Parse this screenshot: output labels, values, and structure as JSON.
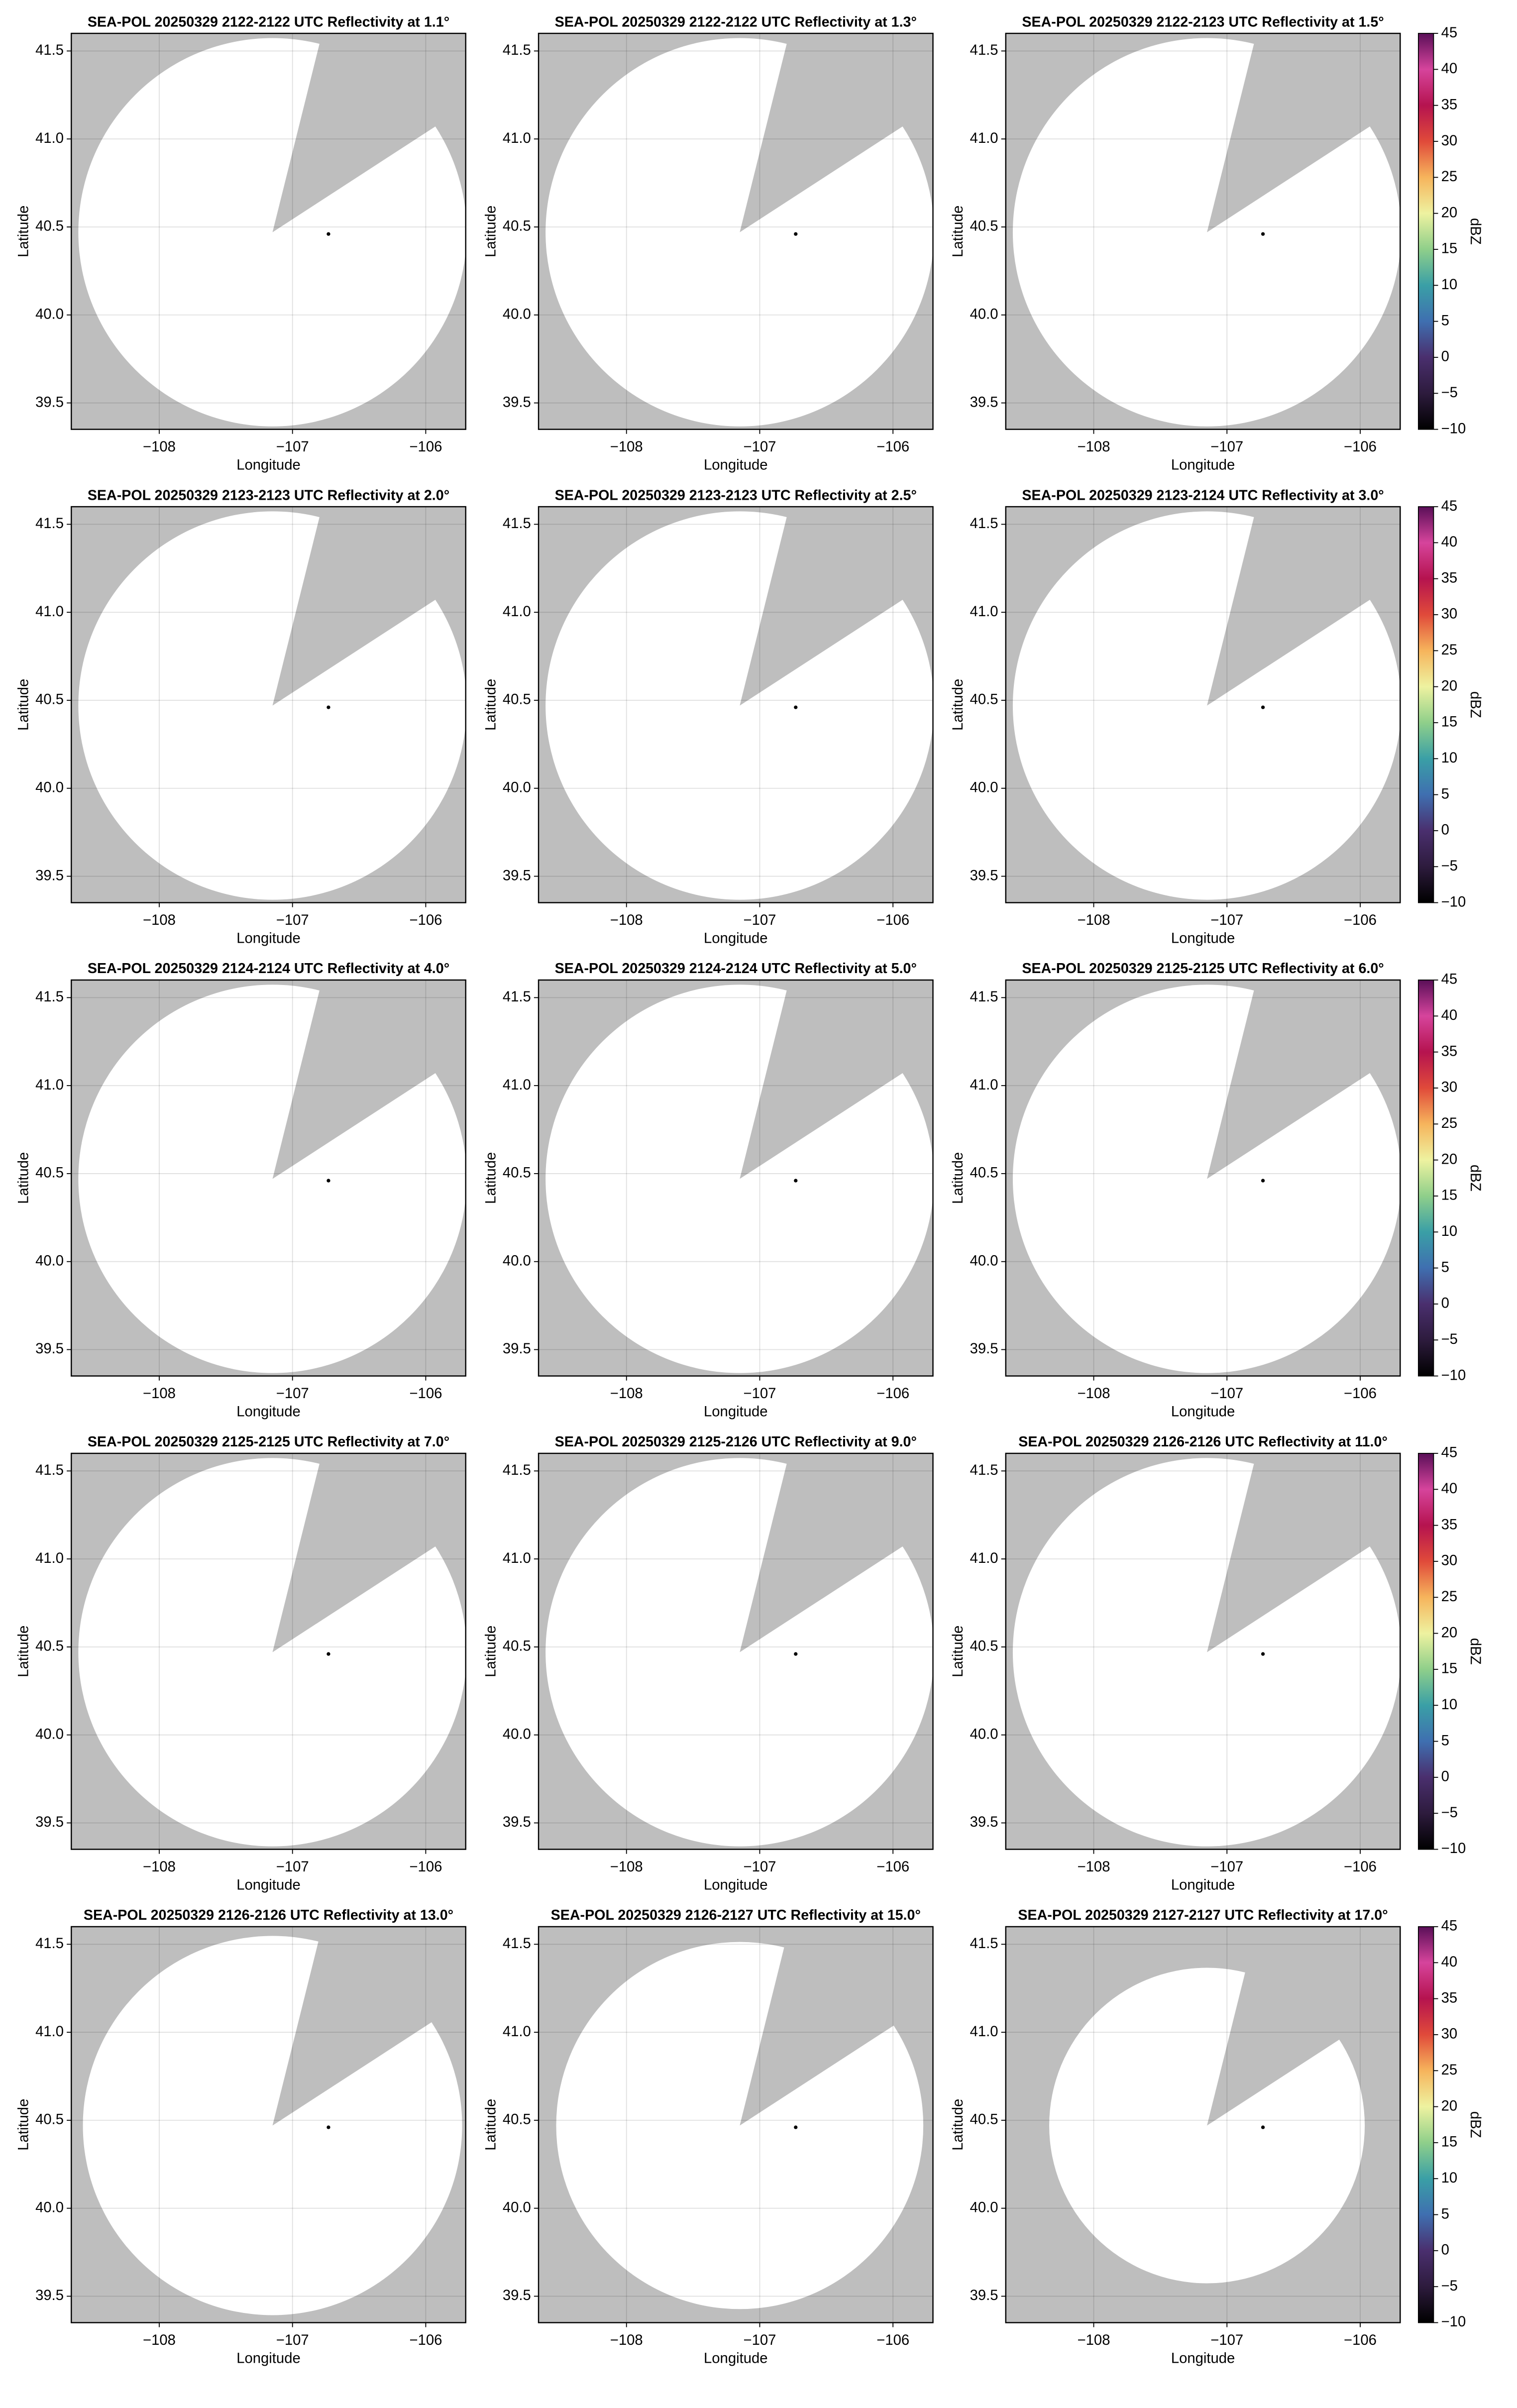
{
  "chart_data": [
    {
      "type": "ppi",
      "title": "SEA-POL 20250329 2122-2122 UTC Reflectivity at 1.1°",
      "xlabel": "Longitude",
      "ylabel": "Latitude",
      "xlim": [
        -108.66,
        -105.7
      ],
      "ylim": [
        39.35,
        41.6
      ],
      "xticks": [
        {
          "value": -108,
          "label": "−108"
        },
        {
          "value": -107,
          "label": "−107"
        },
        {
          "value": -106,
          "label": "−106"
        }
      ],
      "yticks": [
        39.5,
        {
          "value": 40,
          "label": "40.0"
        },
        40.5,
        {
          "value": 41,
          "label": "41.0"
        },
        41.5
      ],
      "grid": true,
      "site": {
        "x": -106.73,
        "y": 40.46
      }
    },
    {
      "type": "ppi",
      "title": "SEA-POL 20250329 2122-2122 UTC Reflectivity at 1.3°",
      "xlabel": "Longitude",
      "ylabel": "Latitude",
      "xlim": [
        -108.66,
        -105.7
      ],
      "ylim": [
        39.35,
        41.6
      ],
      "xticks": [
        {
          "value": -108,
          "label": "−108"
        },
        {
          "value": -107,
          "label": "−107"
        },
        {
          "value": -106,
          "label": "−106"
        }
      ],
      "yticks": [
        39.5,
        {
          "value": 40,
          "label": "40.0"
        },
        40.5,
        {
          "value": 41,
          "label": "41.0"
        },
        41.5
      ],
      "grid": true,
      "site": {
        "x": -106.73,
        "y": 40.46
      }
    },
    {
      "type": "ppi",
      "title": "SEA-POL 20250329 2122-2123 UTC Reflectivity at 1.5°",
      "xlabel": "Longitude",
      "ylabel": "Latitude",
      "xlim": [
        -108.66,
        -105.7
      ],
      "ylim": [
        39.35,
        41.6
      ],
      "xticks": [
        {
          "value": -108,
          "label": "−108"
        },
        {
          "value": -107,
          "label": "−107"
        },
        {
          "value": -106,
          "label": "−106"
        }
      ],
      "yticks": [
        39.5,
        {
          "value": 40,
          "label": "40.0"
        },
        40.5,
        {
          "value": 41,
          "label": "41.0"
        },
        41.5
      ],
      "grid": true,
      "site": {
        "x": -106.73,
        "y": 40.46
      },
      "colorbar": {
        "label": "dBZ",
        "lim": [
          -10,
          45
        ],
        "ticks": [
          {
            "value": -10,
            "label": "−10"
          },
          {
            "value": -5,
            "label": "−5"
          },
          0,
          5,
          10,
          15,
          20,
          25,
          30,
          35,
          40,
          45
        ],
        "colormap": [
          "#000000",
          "#2d1b3d",
          "#4a2f6e",
          "#3f6fb0",
          "#3a9fa6",
          "#8fcf8a",
          "#eef2a0",
          "#f6b45c",
          "#e04a3a",
          "#b5134f",
          "#d6449c",
          "#5a0f58"
        ]
      }
    },
    {
      "type": "ppi",
      "title": "SEA-POL 20250329 2123-2123 UTC Reflectivity at 2.0°",
      "xlabel": "Longitude",
      "ylabel": "Latitude",
      "xlim": [
        -108.66,
        -105.7
      ],
      "ylim": [
        39.35,
        41.6
      ],
      "xticks": [
        {
          "value": -108,
          "label": "−108"
        },
        {
          "value": -107,
          "label": "−107"
        },
        {
          "value": -106,
          "label": "−106"
        }
      ],
      "yticks": [
        39.5,
        {
          "value": 40,
          "label": "40.0"
        },
        40.5,
        {
          "value": 41,
          "label": "41.0"
        },
        41.5
      ],
      "grid": true,
      "site": {
        "x": -106.73,
        "y": 40.46
      }
    },
    {
      "type": "ppi",
      "title": "SEA-POL 20250329 2123-2123 UTC Reflectivity at 2.5°",
      "xlabel": "Longitude",
      "ylabel": "Latitude",
      "xlim": [
        -108.66,
        -105.7
      ],
      "ylim": [
        39.35,
        41.6
      ],
      "xticks": [
        {
          "value": -108,
          "label": "−108"
        },
        {
          "value": -107,
          "label": "−107"
        },
        {
          "value": -106,
          "label": "−106"
        }
      ],
      "yticks": [
        39.5,
        {
          "value": 40,
          "label": "40.0"
        },
        40.5,
        {
          "value": 41,
          "label": "41.0"
        },
        41.5
      ],
      "grid": true,
      "site": {
        "x": -106.73,
        "y": 40.46
      }
    },
    {
      "type": "ppi",
      "title": "SEA-POL 20250329 2123-2124 UTC Reflectivity at 3.0°",
      "xlabel": "Longitude",
      "ylabel": "Latitude",
      "xlim": [
        -108.66,
        -105.7
      ],
      "ylim": [
        39.35,
        41.6
      ],
      "xticks": [
        {
          "value": -108,
          "label": "−108"
        },
        {
          "value": -107,
          "label": "−107"
        },
        {
          "value": -106,
          "label": "−106"
        }
      ],
      "yticks": [
        39.5,
        {
          "value": 40,
          "label": "40.0"
        },
        40.5,
        {
          "value": 41,
          "label": "41.0"
        },
        41.5
      ],
      "grid": true,
      "site": {
        "x": -106.73,
        "y": 40.46
      },
      "colorbar": {
        "label": "dBZ",
        "lim": [
          -10,
          45
        ],
        "ticks": [
          {
            "value": -10,
            "label": "−10"
          },
          {
            "value": -5,
            "label": "−5"
          },
          0,
          5,
          10,
          15,
          20,
          25,
          30,
          35,
          40,
          45
        ],
        "colormap": [
          "#000000",
          "#2d1b3d",
          "#4a2f6e",
          "#3f6fb0",
          "#3a9fa6",
          "#8fcf8a",
          "#eef2a0",
          "#f6b45c",
          "#e04a3a",
          "#b5134f",
          "#d6449c",
          "#5a0f58"
        ]
      }
    },
    {
      "type": "ppi",
      "title": "SEA-POL 20250329 2124-2124 UTC Reflectivity at 4.0°",
      "xlabel": "Longitude",
      "ylabel": "Latitude",
      "xlim": [
        -108.66,
        -105.7
      ],
      "ylim": [
        39.35,
        41.6
      ],
      "xticks": [
        {
          "value": -108,
          "label": "−108"
        },
        {
          "value": -107,
          "label": "−107"
        },
        {
          "value": -106,
          "label": "−106"
        }
      ],
      "yticks": [
        39.5,
        {
          "value": 40,
          "label": "40.0"
        },
        40.5,
        {
          "value": 41,
          "label": "41.0"
        },
        41.5
      ],
      "grid": true,
      "site": {
        "x": -106.73,
        "y": 40.46
      }
    },
    {
      "type": "ppi",
      "title": "SEA-POL 20250329 2124-2124 UTC Reflectivity at 5.0°",
      "xlabel": "Longitude",
      "ylabel": "Latitude",
      "xlim": [
        -108.66,
        -105.7
      ],
      "ylim": [
        39.35,
        41.6
      ],
      "xticks": [
        {
          "value": -108,
          "label": "−108"
        },
        {
          "value": -107,
          "label": "−107"
        },
        {
          "value": -106,
          "label": "−106"
        }
      ],
      "yticks": [
        39.5,
        {
          "value": 40,
          "label": "40.0"
        },
        40.5,
        {
          "value": 41,
          "label": "41.0"
        },
        41.5
      ],
      "grid": true,
      "site": {
        "x": -106.73,
        "y": 40.46
      }
    },
    {
      "type": "ppi",
      "title": "SEA-POL 20250329 2125-2125 UTC Reflectivity at 6.0°",
      "xlabel": "Longitude",
      "ylabel": "Latitude",
      "xlim": [
        -108.66,
        -105.7
      ],
      "ylim": [
        39.35,
        41.6
      ],
      "xticks": [
        {
          "value": -108,
          "label": "−108"
        },
        {
          "value": -107,
          "label": "−107"
        },
        {
          "value": -106,
          "label": "−106"
        }
      ],
      "yticks": [
        39.5,
        {
          "value": 40,
          "label": "40.0"
        },
        40.5,
        {
          "value": 41,
          "label": "41.0"
        },
        41.5
      ],
      "grid": true,
      "site": {
        "x": -106.73,
        "y": 40.46
      },
      "colorbar": {
        "label": "dBZ",
        "lim": [
          -10,
          45
        ],
        "ticks": [
          {
            "value": -10,
            "label": "−10"
          },
          {
            "value": -5,
            "label": "−5"
          },
          0,
          5,
          10,
          15,
          20,
          25,
          30,
          35,
          40,
          45
        ],
        "colormap": [
          "#000000",
          "#2d1b3d",
          "#4a2f6e",
          "#3f6fb0",
          "#3a9fa6",
          "#8fcf8a",
          "#eef2a0",
          "#f6b45c",
          "#e04a3a",
          "#b5134f",
          "#d6449c",
          "#5a0f58"
        ]
      }
    },
    {
      "type": "ppi",
      "title": "SEA-POL 20250329 2125-2125 UTC Reflectivity at 7.0°",
      "xlabel": "Longitude",
      "ylabel": "Latitude",
      "xlim": [
        -108.66,
        -105.7
      ],
      "ylim": [
        39.35,
        41.6
      ],
      "xticks": [
        {
          "value": -108,
          "label": "−108"
        },
        {
          "value": -107,
          "label": "−107"
        },
        {
          "value": -106,
          "label": "−106"
        }
      ],
      "yticks": [
        39.5,
        {
          "value": 40,
          "label": "40.0"
        },
        40.5,
        {
          "value": 41,
          "label": "41.0"
        },
        41.5
      ],
      "grid": true,
      "site": {
        "x": -106.73,
        "y": 40.46
      }
    },
    {
      "type": "ppi",
      "title": "SEA-POL 20250329 2125-2126 UTC Reflectivity at 9.0°",
      "xlabel": "Longitude",
      "ylabel": "Latitude",
      "xlim": [
        -108.66,
        -105.7
      ],
      "ylim": [
        39.35,
        41.6
      ],
      "xticks": [
        {
          "value": -108,
          "label": "−108"
        },
        {
          "value": -107,
          "label": "−107"
        },
        {
          "value": -106,
          "label": "−106"
        }
      ],
      "yticks": [
        39.5,
        {
          "value": 40,
          "label": "40.0"
        },
        40.5,
        {
          "value": 41,
          "label": "41.0"
        },
        41.5
      ],
      "grid": true,
      "site": {
        "x": -106.73,
        "y": 40.46
      }
    },
    {
      "type": "ppi",
      "title": "SEA-POL 20250329 2126-2126 UTC Reflectivity at 11.0°",
      "xlabel": "Longitude",
      "ylabel": "Latitude",
      "xlim": [
        -108.66,
        -105.7
      ],
      "ylim": [
        39.35,
        41.6
      ],
      "xticks": [
        {
          "value": -108,
          "label": "−108"
        },
        {
          "value": -107,
          "label": "−107"
        },
        {
          "value": -106,
          "label": "−106"
        }
      ],
      "yticks": [
        39.5,
        {
          "value": 40,
          "label": "40.0"
        },
        40.5,
        {
          "value": 41,
          "label": "41.0"
        },
        41.5
      ],
      "grid": true,
      "site": {
        "x": -106.73,
        "y": 40.46
      },
      "colorbar": {
        "label": "dBZ",
        "lim": [
          -10,
          45
        ],
        "ticks": [
          {
            "value": -10,
            "label": "−10"
          },
          {
            "value": -5,
            "label": "−5"
          },
          0,
          5,
          10,
          15,
          20,
          25,
          30,
          35,
          40,
          45
        ],
        "colormap": [
          "#000000",
          "#2d1b3d",
          "#4a2f6e",
          "#3f6fb0",
          "#3a9fa6",
          "#8fcf8a",
          "#eef2a0",
          "#f6b45c",
          "#e04a3a",
          "#b5134f",
          "#d6449c",
          "#5a0f58"
        ]
      }
    },
    {
      "type": "ppi",
      "title": "SEA-POL 20250329 2126-2126 UTC Reflectivity at 13.0°",
      "xlabel": "Longitude",
      "ylabel": "Latitude",
      "xlim": [
        -108.66,
        -105.7
      ],
      "ylim": [
        39.35,
        41.6
      ],
      "xticks": [
        {
          "value": -108,
          "label": "−108"
        },
        {
          "value": -107,
          "label": "−107"
        },
        {
          "value": -106,
          "label": "−106"
        }
      ],
      "yticks": [
        39.5,
        {
          "value": 40,
          "label": "40.0"
        },
        40.5,
        {
          "value": 41,
          "label": "41.0"
        },
        41.5
      ],
      "grid": true,
      "site": {
        "x": -106.73,
        "y": 40.46
      }
    },
    {
      "type": "ppi",
      "title": "SEA-POL 20250329 2126-2127 UTC Reflectivity at 15.0°",
      "xlabel": "Longitude",
      "ylabel": "Latitude",
      "xlim": [
        -108.66,
        -105.7
      ],
      "ylim": [
        39.35,
        41.6
      ],
      "xticks": [
        {
          "value": -108,
          "label": "−108"
        },
        {
          "value": -107,
          "label": "−107"
        },
        {
          "value": -106,
          "label": "−106"
        }
      ],
      "yticks": [
        39.5,
        {
          "value": 40,
          "label": "40.0"
        },
        40.5,
        {
          "value": 41,
          "label": "41.0"
        },
        41.5
      ],
      "grid": true,
      "site": {
        "x": -106.73,
        "y": 40.46
      }
    },
    {
      "type": "ppi",
      "title": "SEA-POL 20250329 2127-2127 UTC Reflectivity at 17.0°",
      "xlabel": "Longitude",
      "ylabel": "Latitude",
      "xlim": [
        -108.66,
        -105.7
      ],
      "ylim": [
        39.35,
        41.6
      ],
      "xticks": [
        {
          "value": -108,
          "label": "−108"
        },
        {
          "value": -107,
          "label": "−107"
        },
        {
          "value": -106,
          "label": "−106"
        }
      ],
      "yticks": [
        39.5,
        {
          "value": 40,
          "label": "40.0"
        },
        40.5,
        {
          "value": 41,
          "label": "41.0"
        },
        41.5
      ],
      "grid": true,
      "site": {
        "x": -106.73,
        "y": 40.46
      },
      "colorbar": {
        "label": "dBZ",
        "lim": [
          -10,
          45
        ],
        "ticks": [
          {
            "value": -10,
            "label": "−10"
          },
          {
            "value": -5,
            "label": "−5"
          },
          0,
          5,
          10,
          15,
          20,
          25,
          30,
          35,
          40,
          45
        ],
        "colormap": [
          "#000000",
          "#2d1b3d",
          "#4a2f6e",
          "#3f6fb0",
          "#3a9fa6",
          "#8fcf8a",
          "#eef2a0",
          "#f6b45c",
          "#e04a3a",
          "#b5134f",
          "#d6449c",
          "#5a0f58"
        ]
      }
    }
  ]
}
